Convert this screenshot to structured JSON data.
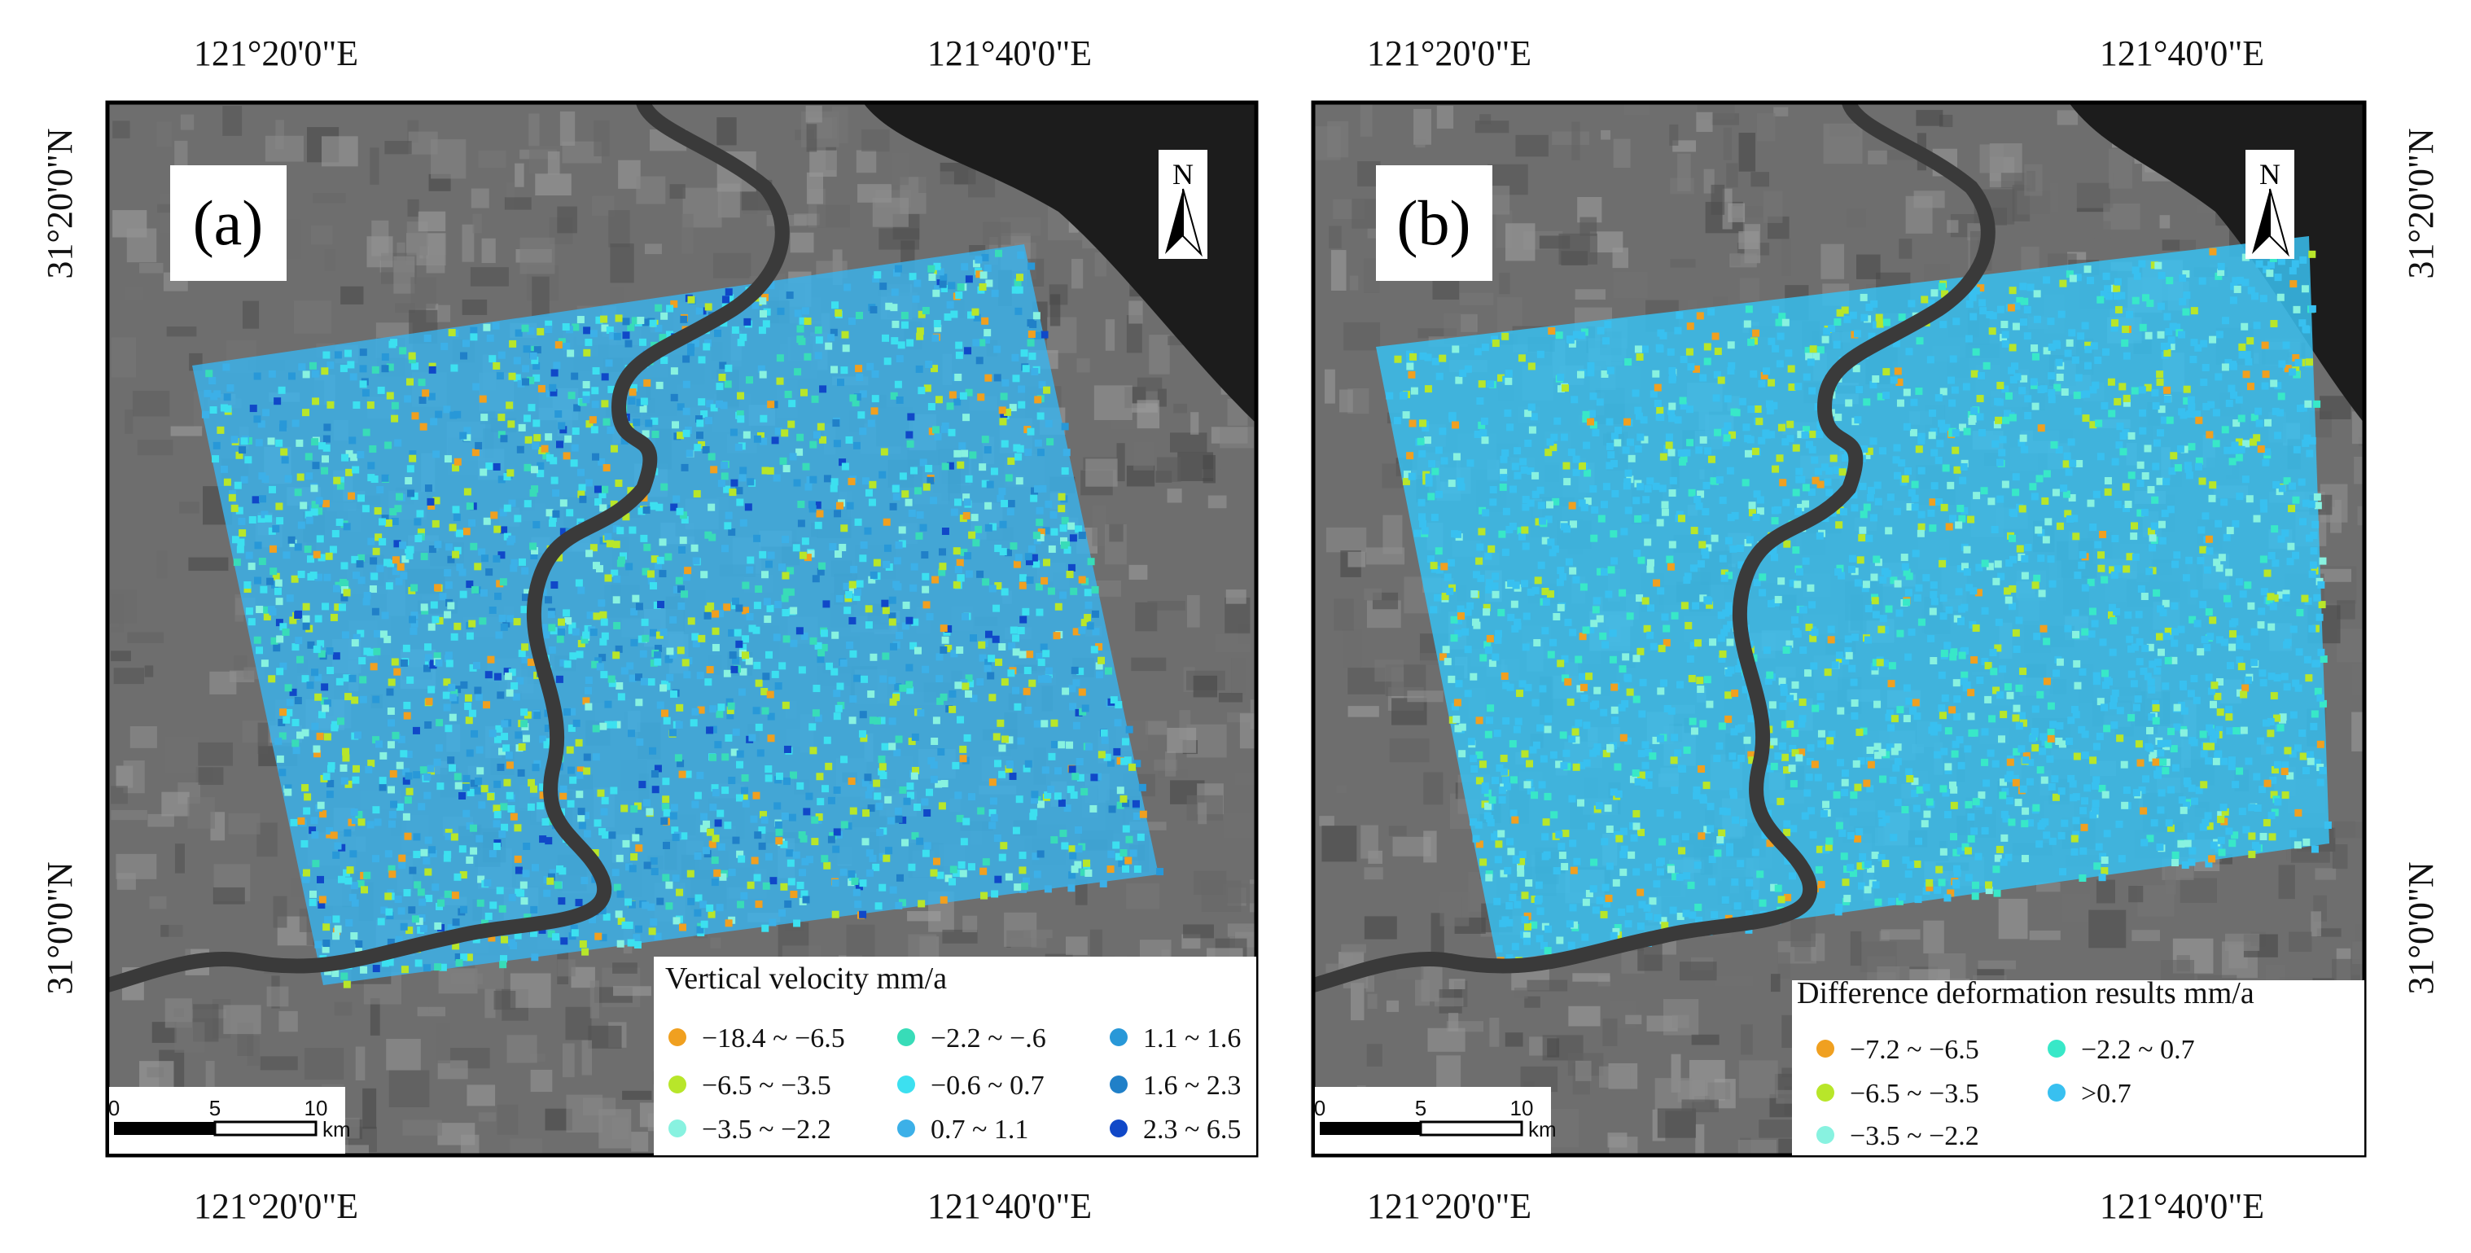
{
  "panels": [
    {
      "label": "(a)",
      "north": "N",
      "top_lon_labels": [
        "121°20'0\"E",
        "121°40'0\"E"
      ],
      "bottom_lon_labels": [
        "121°20'0\"E",
        "121°40'0\"E"
      ],
      "lat_labels": [
        "31°20'0\"N",
        "31°0'0\"N"
      ],
      "legend": {
        "title": "Vertical velocity mm/a",
        "items": [
          {
            "label": "−18.4 ~ −6.5",
            "color": "#f0a020"
          },
          {
            "label": "−6.5 ~ −3.5",
            "color": "#b8e62a"
          },
          {
            "label": "−3.5 ~ −2.2",
            "color": "#88f2e0"
          },
          {
            "label": "−2.2 ~ −.6",
            "color": "#38dcb8"
          },
          {
            "label": "−0.6 ~ 0.7",
            "color": "#3ce0f0"
          },
          {
            "label": "0.7 ~ 1.1",
            "color": "#3cb0e8"
          },
          {
            "label": "1.1 ~ 1.6",
            "color": "#2898d8"
          },
          {
            "label": "1.6 ~ 2.3",
            "color": "#2080c8"
          },
          {
            "label": "2.3 ~ 6.5",
            "color": "#1048c8"
          }
        ]
      },
      "scale": {
        "ticks": [
          "0",
          "5",
          "10"
        ],
        "unit": "km"
      }
    },
    {
      "label": "(b)",
      "north": "N",
      "top_lon_labels": [
        "121°20'0\"E",
        "121°40'0\"E"
      ],
      "bottom_lon_labels": [
        "121°20'0\"E",
        "121°40'0\"E"
      ],
      "lat_labels": [
        "31°20'0\"N",
        "31°0'0\"N"
      ],
      "legend": {
        "title": "Difference deformation results mm/a",
        "items": [
          {
            "label": "−7.2 ~ −6.5",
            "color": "#f0a020"
          },
          {
            "label": "−6.5 ~ −3.5",
            "color": "#b8e62a"
          },
          {
            "label": "−3.5 ~ −2.2",
            "color": "#88f2e0"
          },
          {
            "label": "−2.2 ~ 0.7",
            "color": "#38e8c8"
          },
          {
            "label": ">0.7",
            "color": "#38c0f0"
          }
        ]
      },
      "scale": {
        "ticks": [
          "0",
          "5",
          "10"
        ],
        "unit": "km"
      }
    }
  ]
}
